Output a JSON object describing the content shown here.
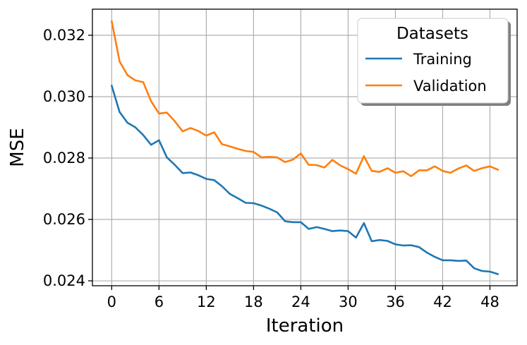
{
  "chart_data": {
    "type": "line",
    "title": "",
    "xlabel": "Iteration",
    "ylabel": "MSE",
    "xlim": [
      -2.45,
      51.45
    ],
    "ylim": [
      0.02384,
      0.03285
    ],
    "grid": true,
    "x_ticks": [
      0,
      6,
      12,
      18,
      24,
      30,
      36,
      42,
      48
    ],
    "x_tick_labels": [
      "0",
      "6",
      "12",
      "18",
      "24",
      "30",
      "36",
      "42",
      "48"
    ],
    "y_ticks": [
      0.024,
      0.026,
      0.028,
      0.03,
      0.032
    ],
    "y_tick_labels": [
      "0.024",
      "0.026",
      "0.028",
      "0.030",
      "0.032"
    ],
    "legend": {
      "title": "Datasets",
      "placement": "top-right"
    },
    "x": [
      0,
      1,
      2,
      3,
      4,
      5,
      6,
      7,
      8,
      9,
      10,
      11,
      12,
      13,
      14,
      15,
      16,
      17,
      18,
      19,
      20,
      21,
      22,
      23,
      24,
      25,
      26,
      27,
      28,
      29,
      30,
      31,
      32,
      33,
      34,
      35,
      36,
      37,
      38,
      39,
      40,
      41,
      42,
      43,
      44,
      45,
      46,
      47,
      48,
      49
    ],
    "series": [
      {
        "name": "Training",
        "color": "#1f77b4",
        "values": [
          0.03035,
          0.0295,
          0.02915,
          0.029,
          0.02875,
          0.02843,
          0.02858,
          0.02802,
          0.02778,
          0.02751,
          0.02753,
          0.02744,
          0.02732,
          0.02728,
          0.02708,
          0.02683,
          0.02669,
          0.02654,
          0.02653,
          0.02645,
          0.02635,
          0.02623,
          0.02594,
          0.02591,
          0.02591,
          0.02569,
          0.02575,
          0.02569,
          0.02562,
          0.02564,
          0.02562,
          0.02541,
          0.02588,
          0.02529,
          0.02533,
          0.0253,
          0.02519,
          0.02515,
          0.02516,
          0.0251,
          0.02492,
          0.02478,
          0.02467,
          0.02467,
          0.02465,
          0.02466,
          0.02441,
          0.02432,
          0.0243,
          0.02422
        ]
      },
      {
        "name": "Validation",
        "color": "#ff7f0e",
        "values": [
          0.03245,
          0.03115,
          0.0307,
          0.03053,
          0.03047,
          0.02985,
          0.02945,
          0.02948,
          0.0292,
          0.02887,
          0.02898,
          0.02888,
          0.02873,
          0.02884,
          0.02845,
          0.02838,
          0.0283,
          0.02823,
          0.0282,
          0.02802,
          0.02804,
          0.02802,
          0.02787,
          0.02795,
          0.02815,
          0.02778,
          0.02777,
          0.02769,
          0.02794,
          0.02776,
          0.02764,
          0.02749,
          0.02806,
          0.02758,
          0.02755,
          0.02767,
          0.02752,
          0.02757,
          0.02741,
          0.0276,
          0.0276,
          0.02773,
          0.02758,
          0.02752,
          0.02766,
          0.02776,
          0.02758,
          0.02767,
          0.02773,
          0.02762
        ]
      }
    ]
  }
}
